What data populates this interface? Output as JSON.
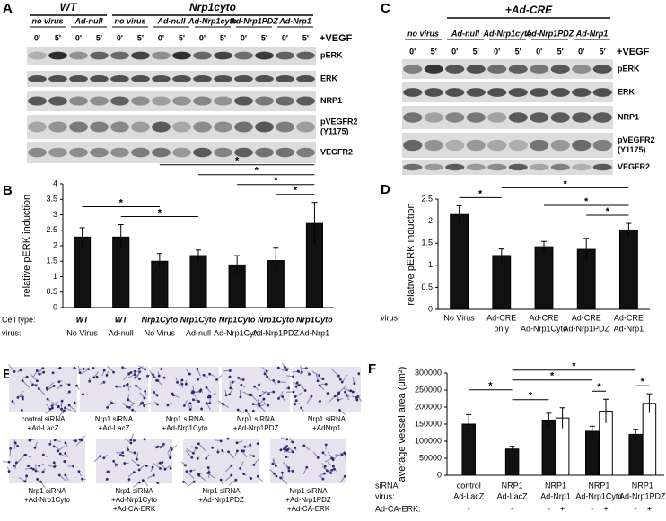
{
  "blots": [
    {
      "panel": "A",
      "header": [
        {
          "text": "WT",
          "from": 0,
          "to": 1
        },
        {
          "text": "Nrp1cyto",
          "from": 2,
          "to": 6
        }
      ],
      "conditions": [
        "no virus",
        "Ad-null",
        "no virus",
        "Ad-null",
        "Ad-Nrp1cyto",
        "Ad-Nrp1PDZ",
        "Ad-Nrp1"
      ],
      "timepoints": [
        "0'",
        "5'"
      ],
      "treatment": "+VEGF",
      "rows": [
        [
          "pERK"
        ],
        [
          "ERK"
        ],
        [
          "NRP1"
        ],
        [
          "pVEGFR2",
          "(Y1175)"
        ],
        [
          "VEGFR2"
        ]
      ]
    },
    {
      "panel": "C",
      "header": [
        {
          "text": "+Ad-CRE",
          "from": 1,
          "to": 4
        }
      ],
      "conditions": [
        "no virus",
        "Ad-null",
        "Ad-Nrp1cyto",
        "Ad-Nrp1PDZ",
        "Ad-Nrp1"
      ],
      "timepoints": [
        "0'",
        "5'"
      ],
      "treatment": "+VEGF",
      "rows": [
        [
          "pERK"
        ],
        [
          "ERK"
        ],
        [
          "NRP1"
        ],
        [
          "pVEGFR2",
          "(Y1175)"
        ],
        [
          "VEGFR2"
        ]
      ]
    }
  ],
  "images": {
    "panel": "E",
    "captions": [
      [
        "control siRNA",
        "+Ad-LacZ"
      ],
      [
        "Nrp1 siRNA",
        "+Ad-LacZ"
      ],
      [
        "Nrp1 siRNA",
        "+Ad-Nrp1Cyto"
      ],
      [
        "Nrp1 siRNA",
        "+Ad-Nrp1PDZ"
      ],
      [
        "Nrp1 siRNA",
        "+AdNrp1"
      ],
      [
        "Nrp1 siRNA",
        "+Ad-Nrp1Cyto"
      ],
      [
        "Nrp1 siRNA",
        "+Ad-Nrp1Cyto",
        "+Ad-CA-ERK"
      ],
      [
        "Nrp1 siRNA",
        "+Ad-Nrp1PDZ"
      ],
      [
        "Nrp1 siRNA",
        "+Ad-Nrp1PDZ",
        "+Ad-CA-ERK"
      ]
    ]
  },
  "chart_data": [
    {
      "type": "bar",
      "panel": "B",
      "y_label": "relative pERK induction",
      "row_labels": [
        "Cell type:",
        "virus:"
      ],
      "categories": [
        [
          "WT",
          "No Virus"
        ],
        [
          "WT",
          "Ad-null"
        ],
        [
          "Nrp1Cyto",
          "No Virus"
        ],
        [
          "Nrp1Cyto",
          "Ad-null"
        ],
        [
          "Nrp1Cyto",
          "Ad-Nrp1Cyto"
        ],
        [
          "Nrp1Cyto",
          "Ad-Nrp1PDZ"
        ],
        [
          "Nrp1Cyto",
          "Ad-Nrp1"
        ]
      ],
      "series": [
        {
          "color": "#111111",
          "values": [
            2.28,
            2.28,
            1.5,
            1.68,
            1.38,
            1.52,
            2.72
          ],
          "errors": [
            0.3,
            0.4,
            0.25,
            0.18,
            0.3,
            0.4,
            0.68
          ]
        }
      ],
      "ylim": [
        0,
        4
      ],
      "yticks": [
        0,
        0.5,
        1,
        1.5,
        2,
        2.5,
        3,
        3.5,
        4
      ],
      "annotations": [
        {
          "text": "*",
          "from": 0,
          "to": 2
        },
        {
          "text": "*",
          "from": 1,
          "to": 3
        },
        {
          "text": "*",
          "from": 2,
          "to": 6
        },
        {
          "text": "*",
          "from": 3,
          "to": 6
        },
        {
          "text": "*",
          "from": 4,
          "to": 6
        },
        {
          "text": "*",
          "from": 5,
          "to": 6
        }
      ]
    },
    {
      "type": "bar",
      "panel": "D",
      "y_label": "relative pERK induction",
      "row_labels": [
        "virus:"
      ],
      "categories": [
        [
          "No Virus"
        ],
        [
          "Ad-CRE",
          "only"
        ],
        [
          "Ad-CRE",
          "Ad-Nrp1Cyto"
        ],
        [
          "Ad-CRE",
          "Ad-Nrp1PDZ"
        ],
        [
          "Ad-CRE",
          "Ad-Nrp1"
        ]
      ],
      "series": [
        {
          "color": "#111111",
          "values": [
            2.15,
            1.22,
            1.42,
            1.36,
            1.8
          ],
          "errors": [
            0.2,
            0.15,
            0.12,
            0.25,
            0.15
          ]
        }
      ],
      "ylim": [
        0,
        2.5
      ],
      "yticks": [
        0,
        0.5,
        1,
        1.5,
        2,
        2.5
      ],
      "annotations": [
        {
          "text": "*",
          "from": 0,
          "to": 1
        },
        {
          "text": "*",
          "from": 1,
          "to": 4
        },
        {
          "text": "*",
          "from": 2,
          "to": 4
        },
        {
          "text": "*",
          "from": 3,
          "to": 4
        }
      ]
    },
    {
      "type": "bar",
      "panel": "F",
      "y_label": "average vessel area (μm²)",
      "row_labels": [
        "siRNA:",
        "virus:",
        "Ad-CA-ERK:"
      ],
      "categories": [
        [
          "control",
          "Ad-LacZ"
        ],
        [
          "NRP1",
          "Ad-LacZ"
        ],
        [
          "NRP1",
          "Ad-Nrp1"
        ],
        [
          "NRP1",
          "Ad-Nrp1Cyto"
        ],
        [
          "NRP1",
          "Ad-Nrp1PDZ"
        ]
      ],
      "series": [
        {
          "color": "#111111",
          "values": [
            150000,
            77000,
            162000,
            129000,
            120000
          ],
          "errors": [
            28000,
            8000,
            20000,
            15000,
            15000
          ],
          "tick_labels": [
            "-",
            "-",
            "-",
            "-",
            "-"
          ]
        },
        {
          "color": "#ffffff",
          "values": [
            null,
            null,
            168000,
            188000,
            211000
          ],
          "errors": [
            null,
            null,
            30000,
            35000,
            28000
          ],
          "tick_labels": [
            null,
            null,
            "+",
            "+",
            "+"
          ]
        }
      ],
      "ylim": [
        0,
        300000
      ],
      "yticks": [
        0,
        50000,
        100000,
        150000,
        200000,
        250000,
        300000
      ],
      "annotations": [
        {
          "text": "*",
          "from": [
            0,
            0
          ],
          "to": [
            1,
            0
          ]
        },
        {
          "text": "*",
          "from": [
            1,
            0
          ],
          "to": [
            2,
            0
          ]
        },
        {
          "text": "*",
          "from": [
            1,
            0
          ],
          "to": [
            3,
            0
          ]
        },
        {
          "text": "*",
          "from": [
            1,
            0
          ],
          "to": [
            4,
            0
          ]
        },
        {
          "text": "*",
          "from": [
            3,
            0
          ],
          "to": [
            3,
            1
          ]
        },
        {
          "text": "*",
          "from": [
            4,
            0
          ],
          "to": [
            4,
            1
          ]
        }
      ]
    }
  ]
}
